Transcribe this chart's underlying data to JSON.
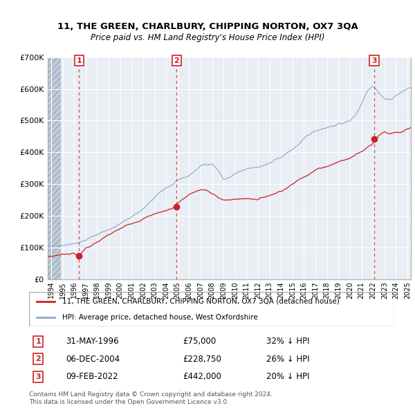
{
  "title": "11, THE GREEN, CHARLBURY, CHIPPING NORTON, OX7 3QA",
  "subtitle": "Price paid vs. HM Land Registry's House Price Index (HPI)",
  "legend_line1": "11, THE GREEN, CHARLBURY, CHIPPING NORTON, OX7 3QA (detached house)",
  "legend_line2": "HPI: Average price, detached house, West Oxfordshire",
  "footer1": "Contains HM Land Registry data © Crown copyright and database right 2024.",
  "footer2": "This data is licensed under the Open Government Licence v3.0.",
  "sales": [
    {
      "num": 1,
      "date": "31-MAY-1996",
      "price": 75000,
      "pct": "32%",
      "year": 1996.42
    },
    {
      "num": 2,
      "date": "06-DEC-2004",
      "price": 228750,
      "pct": "26%",
      "year": 2004.92
    },
    {
      "num": 3,
      "date": "09-FEB-2022",
      "price": 442000,
      "pct": "20%",
      "year": 2022.11
    }
  ],
  "red_color": "#cc2222",
  "blue_color": "#88aacc",
  "background_color": "#e8eef4",
  "ylim": [
    0,
    700000
  ],
  "xlim": [
    1993.7,
    2025.3
  ],
  "yticks": [
    0,
    100000,
    200000,
    300000,
    400000,
    500000,
    600000,
    700000
  ],
  "ytick_labels": [
    "£0",
    "£100K",
    "£200K",
    "£300K",
    "£400K",
    "£500K",
    "£600K",
    "£700K"
  ],
  "xticks": [
    1994,
    1995,
    1996,
    1997,
    1998,
    1999,
    2000,
    2001,
    2002,
    2003,
    2004,
    2005,
    2006,
    2007,
    2008,
    2009,
    2010,
    2011,
    2012,
    2013,
    2014,
    2015,
    2016,
    2017,
    2018,
    2019,
    2020,
    2021,
    2022,
    2023,
    2024,
    2025
  ]
}
